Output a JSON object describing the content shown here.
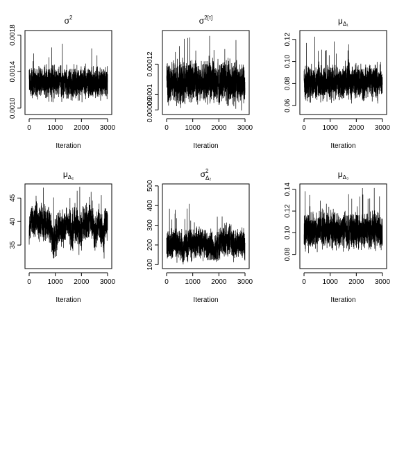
{
  "chart_data": [
    {
      "type": "line",
      "title": "σ²",
      "title_parts": {
        "base": "σ",
        "sup": "2",
        "sub": ""
      },
      "xlabel": "Iteration",
      "ylabel": "",
      "xlim": [
        0,
        3000
      ],
      "ylim": [
        0.00093,
        0.00185
      ],
      "x_ticks": [
        0,
        1000,
        2000,
        3000
      ],
      "x_tick_labels": [
        "0",
        "1000",
        "2000",
        "3000"
      ],
      "y_ticks": [
        0.001,
        0.0014,
        0.0018
      ],
      "y_tick_labels": [
        "0.0010",
        "0.0014",
        "0.0018"
      ],
      "y_tick_rotated": true,
      "grid": false,
      "series": [
        {
          "n": 3000,
          "center": 0.00128,
          "spread": 9e-05,
          "min": 0.00096,
          "max": 0.00178,
          "drift": 0
        }
      ]
    },
    {
      "type": "line",
      "title": "σ2[τ]",
      "title_parts": {
        "base": "σ",
        "sup": "2[τ]",
        "sub": ""
      },
      "xlabel": "Iteration",
      "ylabel": "",
      "xlim": [
        0,
        3000
      ],
      "ylim": [
        8.7e-05,
        0.000142
      ],
      "x_ticks": [
        0,
        1000,
        2000,
        3000
      ],
      "x_tick_labels": [
        "0",
        "1000",
        "2000",
        "3000"
      ],
      "y_ticks": [
        9e-05,
        0.0001,
        0.00012
      ],
      "y_tick_labels": [
        "0.00009",
        "0.0001",
        "0.00012"
      ],
      "y_tick_rotated": true,
      "grid": false,
      "series": [
        {
          "n": 3000,
          "center": 0.000108,
          "spread": 7.5e-06,
          "min": 8.9e-05,
          "max": 0.00014,
          "drift": 0
        }
      ]
    },
    {
      "type": "line",
      "title": "μΔ1",
      "title_parts": {
        "base": "μ",
        "sup": "",
        "sub": "Δ₁"
      },
      "xlabel": "Iteration",
      "ylabel": "",
      "xlim": [
        0,
        3000
      ],
      "ylim": [
        0.052,
        0.128
      ],
      "x_ticks": [
        0,
        1000,
        2000,
        3000
      ],
      "x_tick_labels": [
        "0",
        "1000",
        "2000",
        "3000"
      ],
      "y_ticks": [
        0.06,
        0.08,
        0.1,
        0.12
      ],
      "y_tick_labels": [
        "0.06",
        "0.08",
        "0.10",
        "0.12"
      ],
      "y_tick_rotated": true,
      "grid": false,
      "series": [
        {
          "n": 3000,
          "center": 0.081,
          "spread": 0.0085,
          "min": 0.055,
          "max": 0.124,
          "drift": 0
        }
      ]
    },
    {
      "type": "line",
      "title": "μΔ2",
      "title_parts": {
        "base": "μ",
        "sup": "",
        "sub": "Δ₂"
      },
      "xlabel": "Iteration",
      "ylabel": "",
      "xlim": [
        0,
        3000
      ],
      "ylim": [
        30,
        48
      ],
      "x_ticks": [
        0,
        1000,
        2000,
        3000
      ],
      "x_tick_labels": [
        "0",
        "1000",
        "2000",
        "3000"
      ],
      "y_ticks": [
        35,
        40,
        45
      ],
      "y_tick_labels": [
        "35",
        "40",
        "45"
      ],
      "y_tick_rotated": true,
      "grid": false,
      "series": [
        {
          "n": 3000,
          "center": 38.5,
          "spread": 2.0,
          "min": 31,
          "max": 47.5,
          "drift": 1.2
        }
      ]
    },
    {
      "type": "line",
      "title": "σ²Δ2",
      "title_parts": {
        "base": "σ",
        "sup": "2",
        "sub": "Δ₂"
      },
      "xlabel": "Iteration",
      "ylabel": "",
      "xlim": [
        0,
        3000
      ],
      "ylim": [
        80,
        510
      ],
      "x_ticks": [
        0,
        1000,
        2000,
        3000
      ],
      "x_tick_labels": [
        "0",
        "1000",
        "2000",
        "3000"
      ],
      "y_ticks": [
        100,
        200,
        300,
        400,
        500
      ],
      "y_tick_labels": [
        "100",
        "200",
        "300",
        "400",
        "500"
      ],
      "y_tick_rotated": true,
      "grid": false,
      "series": [
        {
          "n": 3000,
          "center": 205,
          "spread": 40,
          "min": 100,
          "max": 490,
          "drift": 10
        }
      ]
    },
    {
      "type": "line",
      "title": "μΔ3",
      "title_parts": {
        "base": "μ",
        "sup": "",
        "sub": "Δ₃"
      },
      "xlabel": "Iteration",
      "ylabel": "",
      "xlim": [
        0,
        3000
      ],
      "ylim": [
        0.067,
        0.145
      ],
      "x_ticks": [
        0,
        1000,
        2000,
        3000
      ],
      "x_tick_labels": [
        "0",
        "1000",
        "2000",
        "3000"
      ],
      "y_ticks": [
        0.08,
        0.1,
        0.12,
        0.14
      ],
      "y_tick_labels": [
        "0.08",
        "0.10",
        "0.12",
        "0.14"
      ],
      "y_tick_rotated": true,
      "grid": false,
      "series": [
        {
          "n": 3000,
          "center": 0.102,
          "spread": 0.009,
          "min": 0.07,
          "max": 0.142,
          "drift": 0
        }
      ]
    }
  ]
}
